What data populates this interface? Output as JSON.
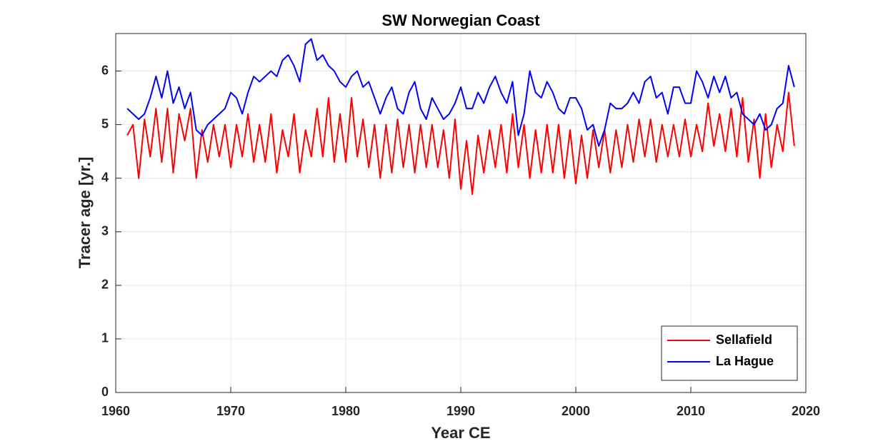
{
  "chart_data": {
    "type": "line",
    "title": "SW Norwegian Coast",
    "x_label": "Year CE",
    "y_label": "Tracer age [yr.]",
    "x": [
      1961,
      1961.5,
      1962,
      1962.5,
      1963,
      1963.5,
      1964,
      1964.5,
      1965,
      1965.5,
      1966,
      1966.5,
      1967,
      1967.5,
      1968,
      1968.5,
      1969,
      1969.5,
      1970,
      1970.5,
      1971,
      1971.5,
      1972,
      1972.5,
      1973,
      1973.5,
      1974,
      1974.5,
      1975,
      1975.5,
      1976,
      1976.5,
      1977,
      1977.5,
      1978,
      1978.5,
      1979,
      1979.5,
      1980,
      1980.5,
      1981,
      1981.5,
      1982,
      1982.5,
      1983,
      1983.5,
      1984,
      1984.5,
      1985,
      1985.5,
      1986,
      1986.5,
      1987,
      1987.5,
      1988,
      1988.5,
      1989,
      1989.5,
      1990,
      1990.5,
      1991,
      1991.5,
      1992,
      1992.5,
      1993,
      1993.5,
      1994,
      1994.5,
      1995,
      1995.5,
      1996,
      1996.5,
      1997,
      1997.5,
      1998,
      1998.5,
      1999,
      1999.5,
      2000,
      2000.5,
      2001,
      2001.5,
      2002,
      2002.5,
      2003,
      2003.5,
      2004,
      2004.5,
      2005,
      2005.5,
      2006,
      2006.5,
      2007,
      2007.5,
      2008,
      2008.5,
      2009,
      2009.5,
      2010,
      2010.5,
      2011,
      2011.5,
      2012,
      2012.5,
      2013,
      2013.5,
      2014,
      2014.5,
      2015,
      2015.5,
      2016,
      2016.5,
      2017,
      2017.5,
      2018,
      2018.5,
      2019
    ],
    "series": [
      {
        "name": "Sellafield",
        "color": "#ff0000",
        "values": [
          4.8,
          5.0,
          4.0,
          5.1,
          4.4,
          5.3,
          4.3,
          5.3,
          4.1,
          5.2,
          4.7,
          5.3,
          4.0,
          4.9,
          4.3,
          5.0,
          4.4,
          5.0,
          4.2,
          5.0,
          4.4,
          5.2,
          4.3,
          5.0,
          4.3,
          5.2,
          4.1,
          4.9,
          4.4,
          5.2,
          4.1,
          4.9,
          4.4,
          5.3,
          4.4,
          5.5,
          4.3,
          5.2,
          4.3,
          5.5,
          4.4,
          5.1,
          4.2,
          5.0,
          4.0,
          5.0,
          4.1,
          5.1,
          4.2,
          5.0,
          4.1,
          5.0,
          4.2,
          5.0,
          4.2,
          4.9,
          4.0,
          5.1,
          3.8,
          4.7,
          3.7,
          4.8,
          4.1,
          4.9,
          4.2,
          5.0,
          4.1,
          5.2,
          4.2,
          5.0,
          4.0,
          4.9,
          4.1,
          5.0,
          4.1,
          5.0,
          4.0,
          4.9,
          3.9,
          4.8,
          4.0,
          4.9,
          4.2,
          4.9,
          4.1,
          4.9,
          4.2,
          5.0,
          4.3,
          5.1,
          4.4,
          5.1,
          4.3,
          5.0,
          4.4,
          5.0,
          4.4,
          5.1,
          4.4,
          5.0,
          4.5,
          5.4,
          4.6,
          5.2,
          4.5,
          5.3,
          4.4,
          5.5,
          4.3,
          5.1,
          4.0,
          5.2,
          4.2,
          5.0,
          4.5,
          5.6,
          4.6
        ]
      },
      {
        "name": "La Hague",
        "color": "#0000ff",
        "values": [
          5.3,
          5.2,
          5.1,
          5.2,
          5.5,
          5.9,
          5.5,
          6.0,
          5.4,
          5.7,
          5.3,
          5.6,
          4.9,
          4.8,
          5.0,
          5.1,
          5.2,
          5.3,
          5.6,
          5.5,
          5.2,
          5.6,
          5.9,
          5.8,
          5.9,
          6.0,
          5.9,
          6.2,
          6.3,
          6.1,
          5.8,
          6.5,
          6.6,
          6.2,
          6.3,
          6.1,
          6.0,
          5.8,
          5.7,
          5.9,
          6.0,
          5.7,
          5.8,
          5.5,
          5.2,
          5.5,
          5.7,
          5.3,
          5.2,
          5.6,
          5.8,
          5.3,
          5.1,
          5.5,
          5.3,
          5.1,
          5.2,
          5.4,
          5.7,
          5.3,
          5.3,
          5.6,
          5.4,
          5.7,
          5.9,
          5.6,
          5.4,
          5.8,
          4.8,
          5.2,
          6.0,
          5.6,
          5.5,
          5.8,
          5.6,
          5.3,
          5.2,
          5.5,
          5.5,
          5.3,
          4.9,
          5.0,
          4.6,
          4.9,
          5.4,
          5.3,
          5.3,
          5.4,
          5.6,
          5.4,
          5.8,
          5.9,
          5.5,
          5.6,
          5.2,
          5.7,
          5.7,
          5.4,
          5.4,
          6.0,
          5.8,
          5.5,
          5.9,
          5.6,
          5.9,
          5.5,
          5.6,
          5.2,
          5.1,
          5.0,
          5.2,
          4.9,
          5.0,
          5.3,
          5.4,
          6.1,
          5.7
        ]
      }
    ],
    "xlim": [
      1960,
      2020
    ],
    "xticks": [
      1960,
      1970,
      1980,
      1990,
      2000,
      2010,
      2020
    ],
    "ylim": [
      0,
      6.7
    ],
    "yticks": [
      0,
      1,
      2,
      3,
      4,
      5,
      6
    ],
    "grid": true,
    "legend": "lower-right"
  }
}
